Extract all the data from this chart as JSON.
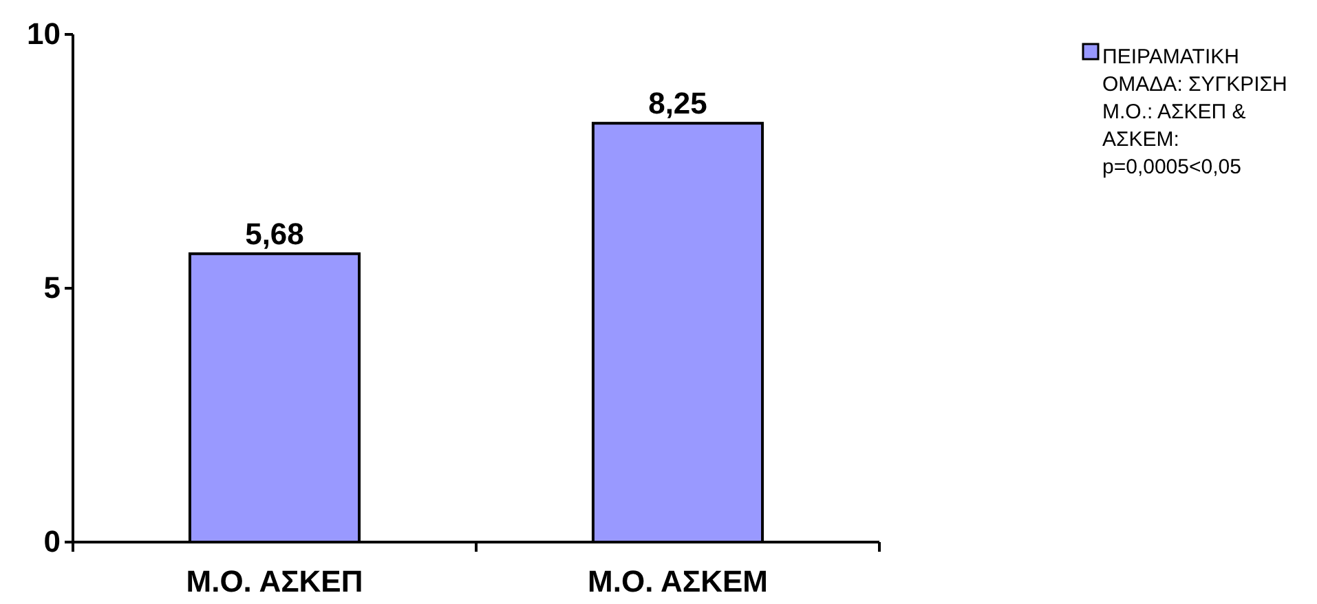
{
  "chart_data": {
    "type": "bar",
    "categories": [
      "Μ.Ο. ΑΣΚΕΠ",
      "Μ.Ο. ΑΣΚΕΜ"
    ],
    "series": [
      {
        "name": "ΠΕΙΡΑΜΑΤΙΚΗ ΟΜΑΔΑ: ΣΥΓΚΡΙΣΗ Μ.Ο.: ΑΣΚΕΠ & ΑΣΚΕΜ: p=0,0005<0,05",
        "color": "#9999ff",
        "values": [
          5.68,
          8.25
        ],
        "value_labels": [
          "5,68",
          "8,25"
        ]
      }
    ],
    "ylim": [
      0,
      10
    ],
    "yticks": [
      0,
      5,
      10
    ],
    "grid": false,
    "legend": "top right"
  }
}
